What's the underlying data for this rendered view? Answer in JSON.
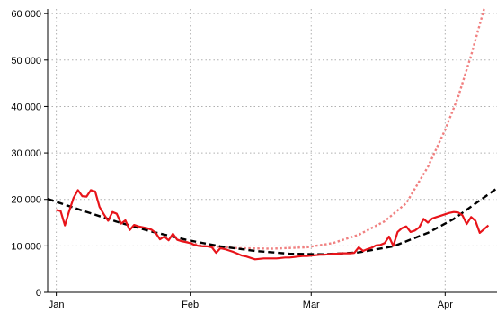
{
  "chart_data": {
    "type": "line",
    "x_axis": {
      "type": "date",
      "range": [
        "2021-12-30",
        "2022-04-13"
      ],
      "tick_dates": [
        "2022-01-01",
        "2022-02-01",
        "2022-03-01",
        "2022-04-01"
      ],
      "tick_labels": [
        "Jan",
        "Feb",
        "Mar",
        "Apr"
      ]
    },
    "y_axis": {
      "range": [
        0,
        61000
      ],
      "ticks": [
        0,
        10000,
        20000,
        30000,
        40000,
        50000,
        60000
      ],
      "tick_labels": [
        "0",
        "10 000",
        "20 000",
        "30 000",
        "40 000",
        "50 000",
        "60 000"
      ]
    },
    "grid": true,
    "series": [
      {
        "style": "solid",
        "color": "#e8141a",
        "points": [
          [
            "2022-01-01",
            17700
          ],
          [
            "2022-01-02",
            17500
          ],
          [
            "2022-01-03",
            14400
          ],
          [
            "2022-01-04",
            17500
          ],
          [
            "2022-01-05",
            20300
          ],
          [
            "2022-01-06",
            22000
          ],
          [
            "2022-01-07",
            20700
          ],
          [
            "2022-01-08",
            20600
          ],
          [
            "2022-01-09",
            22000
          ],
          [
            "2022-01-10",
            21700
          ],
          [
            "2022-01-11",
            18400
          ],
          [
            "2022-01-12",
            16800
          ],
          [
            "2022-01-13",
            15400
          ],
          [
            "2022-01-14",
            17300
          ],
          [
            "2022-01-15",
            16900
          ],
          [
            "2022-01-16",
            14800
          ],
          [
            "2022-01-17",
            15500
          ],
          [
            "2022-01-18",
            13400
          ],
          [
            "2022-01-19",
            14500
          ],
          [
            "2022-01-20",
            14200
          ],
          [
            "2022-01-21",
            14000
          ],
          [
            "2022-01-22",
            13800
          ],
          [
            "2022-01-23",
            13500
          ],
          [
            "2022-01-24",
            12800
          ],
          [
            "2022-01-25",
            11400
          ],
          [
            "2022-01-26",
            12000
          ],
          [
            "2022-01-27",
            11200
          ],
          [
            "2022-01-28",
            12600
          ],
          [
            "2022-01-29",
            11300
          ],
          [
            "2022-01-30",
            11000
          ],
          [
            "2022-01-31",
            10800
          ],
          [
            "2022-02-01",
            10600
          ],
          [
            "2022-02-02",
            10200
          ],
          [
            "2022-02-03",
            10000
          ],
          [
            "2022-02-04",
            9900
          ],
          [
            "2022-02-05",
            9900
          ],
          [
            "2022-02-06",
            9700
          ],
          [
            "2022-02-07",
            8500
          ],
          [
            "2022-02-08",
            9500
          ],
          [
            "2022-02-09",
            9300
          ],
          [
            "2022-02-10",
            9000
          ],
          [
            "2022-02-11",
            8700
          ],
          [
            "2022-02-12",
            8300
          ],
          [
            "2022-02-13",
            7900
          ],
          [
            "2022-02-14",
            7700
          ],
          [
            "2022-02-15",
            7400
          ],
          [
            "2022-02-16",
            7100
          ],
          [
            "2022-02-17",
            7200
          ],
          [
            "2022-02-18",
            7300
          ],
          [
            "2022-02-19",
            7300
          ],
          [
            "2022-02-20",
            7300
          ],
          [
            "2022-02-21",
            7300
          ],
          [
            "2022-02-22",
            7400
          ],
          [
            "2022-02-23",
            7500
          ],
          [
            "2022-02-24",
            7500
          ],
          [
            "2022-02-25",
            7600
          ],
          [
            "2022-02-26",
            7700
          ],
          [
            "2022-02-27",
            7800
          ],
          [
            "2022-02-28",
            7800
          ],
          [
            "2022-03-01",
            7900
          ],
          [
            "2022-03-02",
            8000
          ],
          [
            "2022-03-03",
            8100
          ],
          [
            "2022-03-04",
            8100
          ],
          [
            "2022-03-05",
            8200
          ],
          [
            "2022-03-06",
            8300
          ],
          [
            "2022-03-07",
            8300
          ],
          [
            "2022-03-08",
            8400
          ],
          [
            "2022-03-09",
            8400
          ],
          [
            "2022-03-10",
            8400
          ],
          [
            "2022-03-11",
            8500
          ],
          [
            "2022-03-12",
            9700
          ],
          [
            "2022-03-13",
            8900
          ],
          [
            "2022-03-14",
            9300
          ],
          [
            "2022-03-15",
            9600
          ],
          [
            "2022-03-16",
            10100
          ],
          [
            "2022-03-17",
            10200
          ],
          [
            "2022-03-18",
            10600
          ],
          [
            "2022-03-19",
            12000
          ],
          [
            "2022-03-20",
            10000
          ],
          [
            "2022-03-21",
            13000
          ],
          [
            "2022-03-22",
            13800
          ],
          [
            "2022-03-23",
            14200
          ],
          [
            "2022-03-24",
            13000
          ],
          [
            "2022-03-25",
            13300
          ],
          [
            "2022-03-26",
            14000
          ],
          [
            "2022-03-27",
            15800
          ],
          [
            "2022-03-28",
            15000
          ],
          [
            "2022-03-29",
            15900
          ],
          [
            "2022-03-30",
            16200
          ],
          [
            "2022-03-31",
            16500
          ],
          [
            "2022-04-01",
            16800
          ],
          [
            "2022-04-02",
            17100
          ],
          [
            "2022-04-03",
            17300
          ],
          [
            "2022-04-04",
            17200
          ],
          [
            "2022-04-05",
            16600
          ],
          [
            "2022-04-06",
            14700
          ],
          [
            "2022-04-07",
            16200
          ],
          [
            "2022-04-08",
            15400
          ],
          [
            "2022-04-09",
            12800
          ],
          [
            "2022-04-10",
            13600
          ],
          [
            "2022-04-11",
            14400
          ]
        ]
      },
      {
        "style": "dashed",
        "color": "#000000",
        "points": [
          [
            "2021-12-30",
            20100
          ],
          [
            "2022-01-07",
            17600
          ],
          [
            "2022-01-15",
            15200
          ],
          [
            "2022-01-23",
            13100
          ],
          [
            "2022-01-31",
            11300
          ],
          [
            "2022-02-08",
            9900
          ],
          [
            "2022-02-16",
            8900
          ],
          [
            "2022-02-24",
            8300
          ],
          [
            "2022-03-04",
            8200
          ],
          [
            "2022-03-12",
            8600
          ],
          [
            "2022-03-20",
            9900
          ],
          [
            "2022-03-28",
            12800
          ],
          [
            "2022-04-03",
            15800
          ],
          [
            "2022-04-13",
            22400
          ]
        ]
      },
      {
        "style": "dotted",
        "color": "#f08080",
        "points": [
          [
            "2022-01-29",
            11300
          ],
          [
            "2022-02-04",
            10000
          ],
          [
            "2022-02-12",
            9500
          ],
          [
            "2022-02-20",
            9400
          ],
          [
            "2022-02-28",
            9700
          ],
          [
            "2022-03-06",
            10600
          ],
          [
            "2022-03-12",
            12400
          ],
          [
            "2022-03-18",
            15300
          ],
          [
            "2022-03-23",
            19200
          ],
          [
            "2022-03-28",
            27000
          ],
          [
            "2022-04-01",
            35000
          ],
          [
            "2022-04-04",
            42000
          ],
          [
            "2022-04-07",
            51000
          ],
          [
            "2022-04-10",
            61000
          ]
        ]
      }
    ]
  }
}
